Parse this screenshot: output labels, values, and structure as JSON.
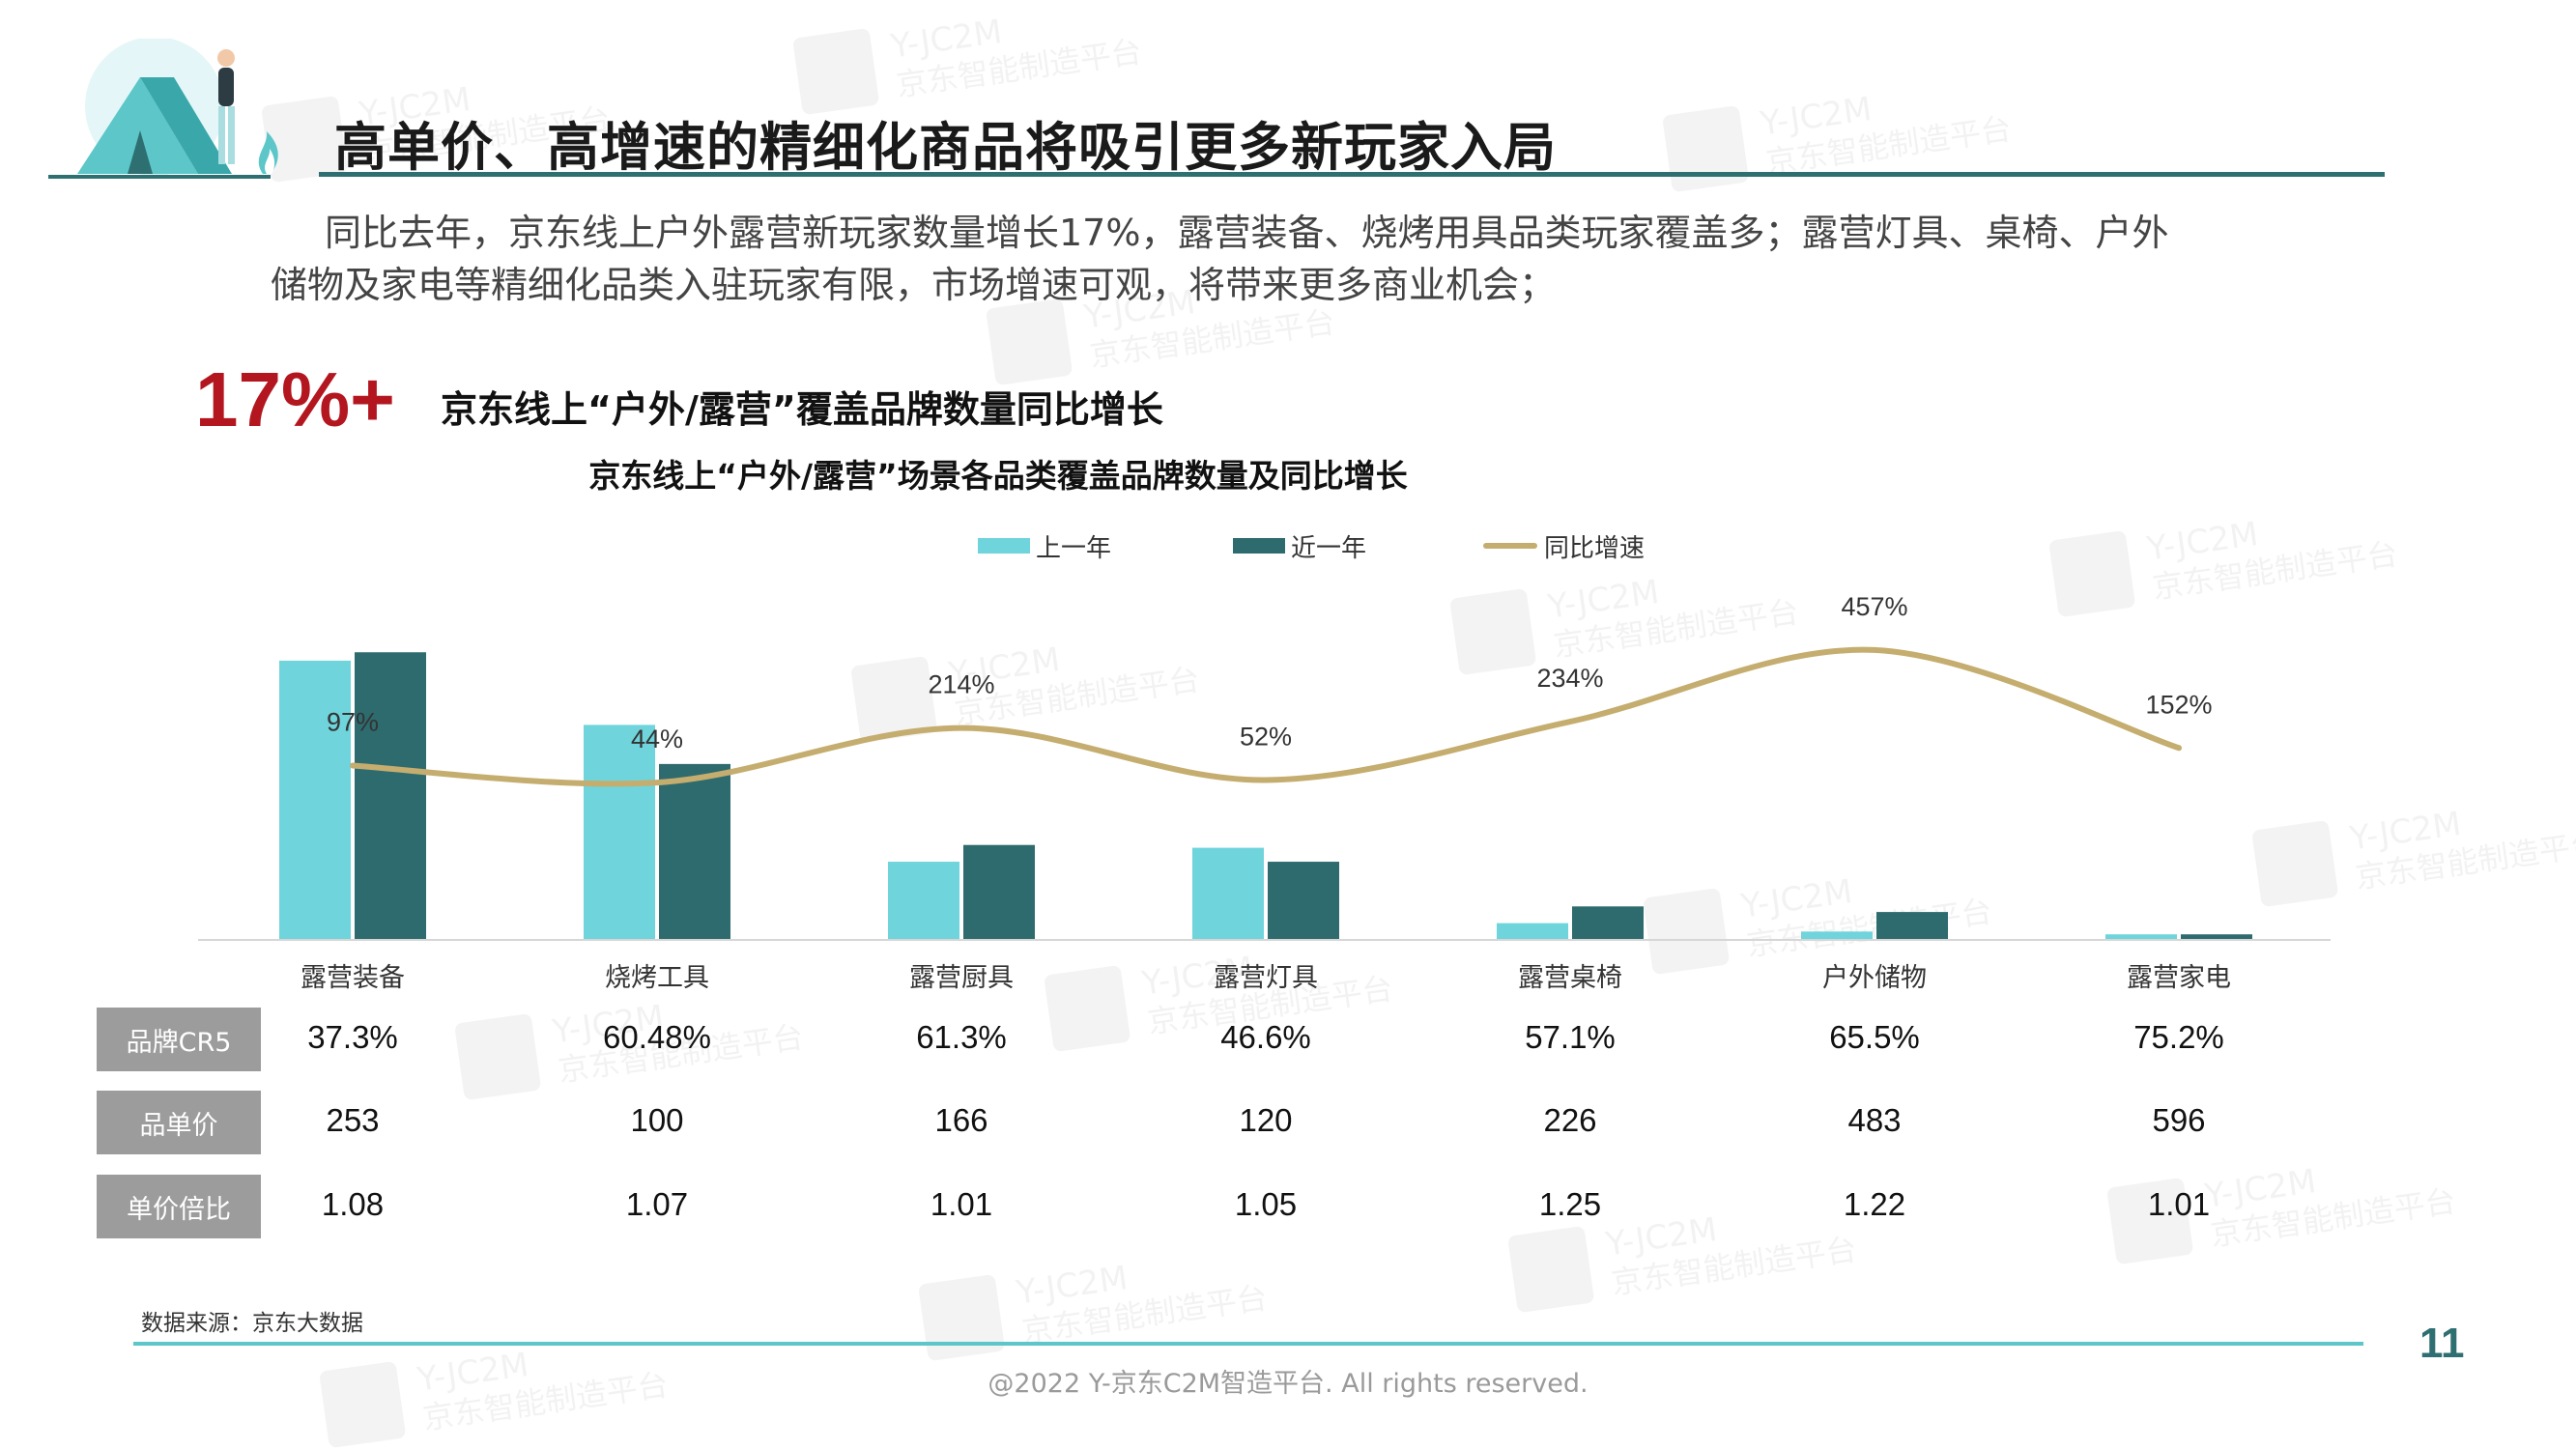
{
  "title": "高单价、高增速的精细化商品将吸引更多新玩家入局",
  "intro": {
    "line1": "同比去年，京东线上户外露营新玩家数量增长17%，露营装备、烧烤用具品类玩家覆盖多；露营灯具、桌椅、户外",
    "line2": "储物及家电等精细化品类入驻玩家有限，市场增速可观，将带来更多商业机会；"
  },
  "highlight": {
    "value": "17%+",
    "text": "京东线上“户外/露营”覆盖品牌数量同比增长"
  },
  "chart_data": {
    "type": "bar",
    "title": "京东线上“户外/露营”场景各品类覆盖品牌数量及同比增长",
    "categories": [
      "露营装备",
      "烧烤工具",
      "露营厨具",
      "露营灯具",
      "露营桌椅",
      "户外储物",
      "露营家电"
    ],
    "series": [
      {
        "name": "上一年",
        "type": "bar",
        "color": "#6fd4db",
        "values": [
          100,
          77,
          28,
          33,
          6,
          3,
          2
        ]
      },
      {
        "name": "近一年",
        "type": "bar",
        "color": "#2e6b6e",
        "values": [
          103,
          63,
          34,
          28,
          12,
          10,
          2
        ]
      },
      {
        "name": "同比增速",
        "type": "line",
        "color": "#c4ad6e",
        "values": [
          97,
          44,
          214,
          52,
          234,
          457,
          152
        ],
        "labels": [
          "97%",
          "44%",
          "214%",
          "52%",
          "234%",
          "457%",
          "152%"
        ]
      }
    ],
    "legend": "top-center",
    "grid": false,
    "ylim": [
      0,
      110
    ],
    "y2lim": [
      -100,
      520
    ]
  },
  "table": {
    "rows": [
      {
        "label": "品牌CR5",
        "values": [
          "37.3%",
          "60.48%",
          "61.3%",
          "46.6%",
          "57.1%",
          "65.5%",
          "75.2%"
        ]
      },
      {
        "label": "品单价",
        "values": [
          "253",
          "100",
          "166",
          "120",
          "226",
          "483",
          "596"
        ]
      },
      {
        "label": "单价倍比",
        "values": [
          "1.08",
          "1.07",
          "1.01",
          "1.05",
          "1.25",
          "1.22",
          "1.01"
        ]
      }
    ]
  },
  "footer": {
    "source": "数据来源：京东大数据",
    "page": "11",
    "copyright": "@2022 Y-京东C2M智造平台. All rights reserved."
  },
  "watermark": {
    "line1": "Y-JC2M",
    "line2": "京东智能制造平台"
  },
  "colors": {
    "accent": "#2e6f72",
    "highlight_red": "#b3161f",
    "footer_rule": "#5cc6c8"
  },
  "icons": [
    "camping-tent-illustration"
  ]
}
